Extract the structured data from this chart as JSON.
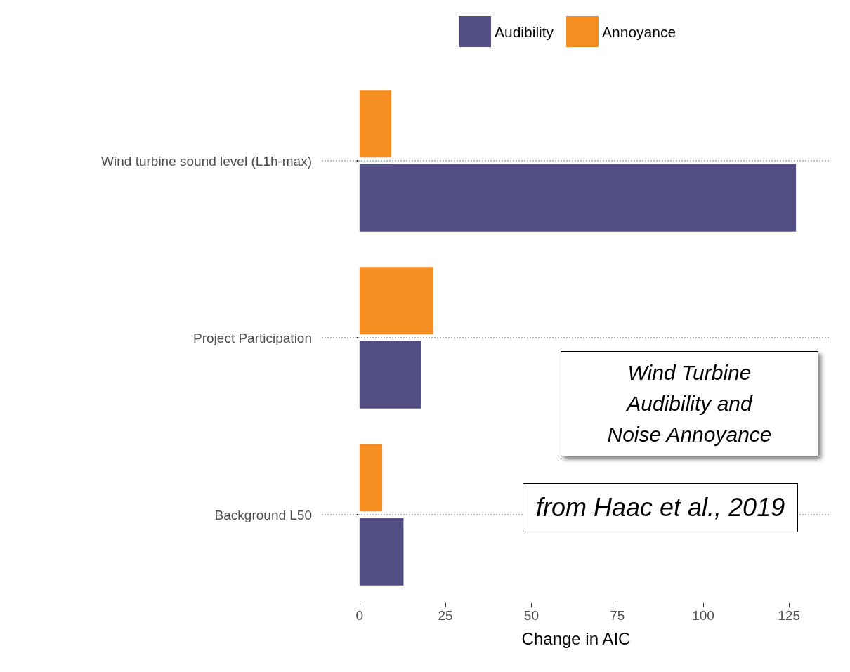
{
  "chart_data": {
    "type": "bar",
    "orientation": "horizontal",
    "xlabel": "Change in AIC",
    "categories": [
      "Wind turbine sound level (L1h-max)",
      "Project Participation",
      "Background L50"
    ],
    "series": [
      {
        "name": "Audibility",
        "color": "#524e84",
        "values": [
          127,
          18,
          12.8
        ]
      },
      {
        "name": "Annoyance",
        "color": "#f68d21",
        "values": [
          9.2,
          21.4,
          6.6
        ]
      }
    ],
    "xlim": [
      -11,
      137
    ],
    "xticks": [
      0,
      25,
      50,
      75,
      100,
      125
    ],
    "grid": "y",
    "legend": "top",
    "annotations": [
      "Wind Turbine\nAudibility and\nNoise Annoyance",
      "from Haac et al., 2019"
    ]
  }
}
